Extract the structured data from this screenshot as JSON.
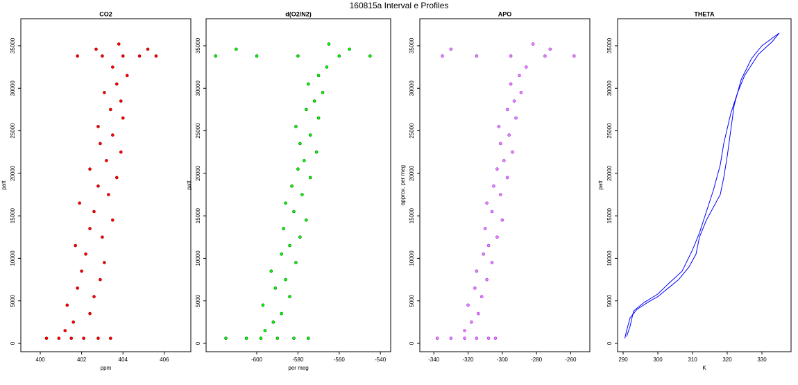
{
  "title": "160815a   Interval e Profiles",
  "chart_data": [
    {
      "type": "scatter",
      "title": "CO2",
      "xlabel": "ppm",
      "ylabel": "patt",
      "color": "#ff0000",
      "edge_color": "#8b0000",
      "xlim": [
        399.06,
        407.28
      ],
      "xticks": [
        400,
        402,
        404,
        406
      ],
      "ylim": [
        -979,
        38180
      ],
      "yticks": [
        0,
        5000,
        10000,
        15000,
        20000,
        25000,
        30000,
        35000
      ],
      "x": [
        400.3,
        400.9,
        401.5,
        402.1,
        402.8,
        403.4,
        401.2,
        401.6,
        402.4,
        401.3,
        402.6,
        401.8,
        402.9,
        402.0,
        403.1,
        402.2,
        401.7,
        403.0,
        402.4,
        403.5,
        402.6,
        401.9,
        403.3,
        402.8,
        403.7,
        402.4,
        403.2,
        403.9,
        402.9,
        403.5,
        402.8,
        404.0,
        403.4,
        403.9,
        403.1,
        403.7,
        404.2,
        403.5,
        401.8,
        403.0,
        404.0,
        404.8,
        405.6,
        402.7,
        405.2,
        403.8
      ],
      "y": [
        600,
        600,
        600,
        600,
        600,
        600,
        1500,
        2500,
        3500,
        4500,
        5500,
        6500,
        7500,
        8500,
        9500,
        10500,
        11500,
        12500,
        13500,
        14500,
        15500,
        16500,
        17500,
        18500,
        19500,
        20500,
        21500,
        22500,
        23500,
        24500,
        25500,
        26500,
        27500,
        28500,
        29500,
        30500,
        31500,
        32500,
        33800,
        33800,
        33800,
        33800,
        33800,
        34600,
        34600,
        35200
      ]
    },
    {
      "type": "scatter",
      "title": "d(O2/N2)",
      "xlabel": "per meg",
      "ylabel": "patt",
      "color": "#00ff00",
      "edge_color": "#006400",
      "xlim": [
        -624.6,
        -535
      ],
      "xticks": [
        -600,
        -580,
        -560,
        -540
      ],
      "ylim": [
        -979,
        38180
      ],
      "yticks": [
        0,
        5000,
        10000,
        15000,
        20000,
        25000,
        30000,
        35000
      ],
      "x": [
        -615,
        -605,
        -598,
        -590,
        -582,
        -575,
        -596,
        -592,
        -588,
        -597,
        -584,
        -591,
        -586,
        -593,
        -581,
        -588,
        -584,
        -579,
        -587,
        -576,
        -582,
        -586,
        -578,
        -583,
        -574,
        -580,
        -577,
        -571,
        -579,
        -574,
        -581,
        -570,
        -576,
        -572,
        -568,
        -575,
        -570,
        -566,
        -620,
        -600,
        -580,
        -560,
        -545,
        -610,
        -555,
        -565
      ],
      "y": [
        600,
        600,
        600,
        600,
        600,
        600,
        1500,
        2500,
        3500,
        4500,
        5500,
        6500,
        7500,
        8500,
        9500,
        10500,
        11500,
        12500,
        13500,
        14500,
        15500,
        16500,
        17500,
        18500,
        19500,
        20500,
        21500,
        22500,
        23500,
        24500,
        25500,
        26500,
        27500,
        28500,
        29500,
        30500,
        31500,
        32500,
        33800,
        33800,
        33800,
        33800,
        33800,
        34600,
        34600,
        35200
      ]
    },
    {
      "type": "scatter",
      "title": "APO",
      "ylabel": "approx. per meg",
      "color": "#ee82ee",
      "edge_color": "#8a2be2",
      "xlim": [
        -348.2,
        -248.8
      ],
      "xticks": [
        -340,
        -320,
        -300,
        -280,
        -260
      ],
      "ylim": [
        -979,
        38180
      ],
      "yticks": [
        0,
        5000,
        10000,
        15000,
        20000,
        25000,
        30000,
        35000
      ],
      "x": [
        -338,
        -330,
        -322,
        -315,
        -308,
        -304,
        -322,
        -318,
        -314,
        -320,
        -312,
        -316,
        -309,
        -315,
        -306,
        -311,
        -308,
        -303,
        -310,
        -300,
        -306,
        -309,
        -301,
        -305,
        -297,
        -303,
        -299,
        -294,
        -301,
        -296,
        -302,
        -292,
        -297,
        -293,
        -289,
        -295,
        -290,
        -286,
        -335,
        -315,
        -295,
        -275,
        -258,
        -330,
        -272,
        -282
      ],
      "y": [
        600,
        600,
        600,
        600,
        600,
        600,
        1500,
        2500,
        3500,
        4500,
        5500,
        6500,
        7500,
        8500,
        9500,
        10500,
        11500,
        12500,
        13500,
        14500,
        15500,
        16500,
        17500,
        18500,
        19500,
        20500,
        21500,
        22500,
        23500,
        24500,
        25500,
        26500,
        27500,
        28500,
        29500,
        30500,
        31500,
        32500,
        33800,
        33800,
        33800,
        33800,
        33800,
        34600,
        34600,
        35200
      ]
    },
    {
      "type": "line",
      "title": "THETA",
      "xlabel": "K",
      "ylabel": "patt",
      "xlim": [
        288.4,
        338.4
      ],
      "xticks": [
        290,
        300,
        310,
        320,
        330
      ],
      "ylim": [
        -979,
        38180
      ],
      "yticks": [
        0,
        5000,
        10000,
        15000,
        20000,
        25000,
        30000,
        35000
      ],
      "series": [
        {
          "color": "#0000ff",
          "x": [
            290.5,
            291,
            292,
            294,
            297,
            300,
            303,
            306,
            309,
            311,
            312,
            314,
            316,
            318,
            319,
            320,
            321,
            322,
            324,
            327,
            330,
            335
          ],
          "y": [
            600,
            1500,
            3000,
            4000,
            4800,
            5500,
            6500,
            7500,
            9000,
            10500,
            12500,
            14500,
            16000,
            17500,
            19500,
            22000,
            25000,
            28000,
            31000,
            33500,
            35000,
            36500
          ]
        },
        {
          "color": "#0000ff",
          "x": [
            335,
            333,
            329,
            325,
            323,
            321,
            319,
            318,
            316,
            314,
            312,
            310,
            307,
            303,
            300,
            296,
            293,
            292,
            291
          ],
          "y": [
            36500,
            35500,
            34000,
            31500,
            29500,
            27000,
            23500,
            21000,
            18000,
            15500,
            13000,
            11000,
            8500,
            7000,
            5800,
            4800,
            3800,
            2000,
            800
          ]
        }
      ]
    }
  ]
}
